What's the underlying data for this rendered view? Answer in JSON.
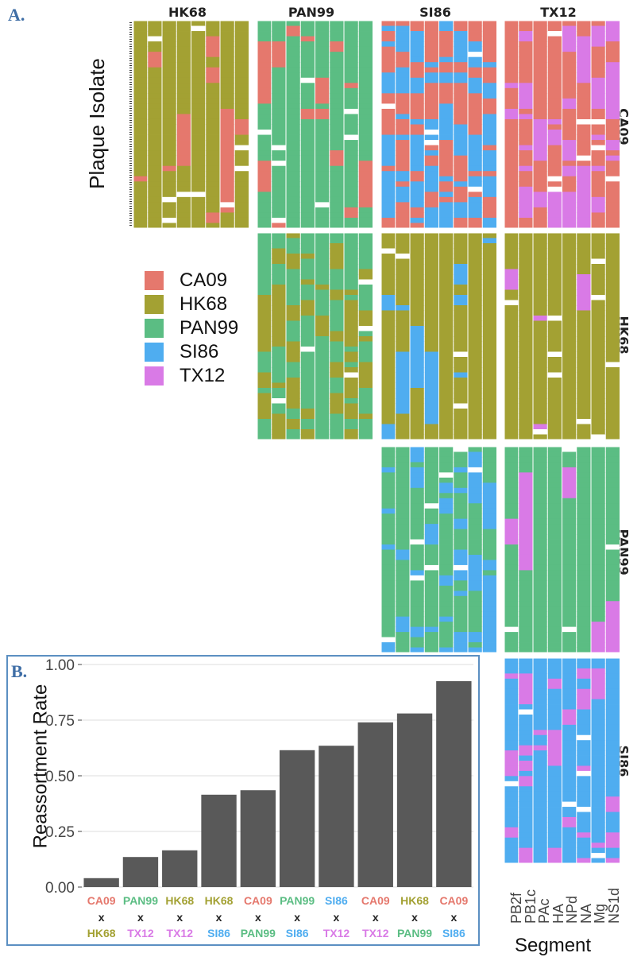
{
  "panel_a_label": "A.",
  "panel_b_label": "B.",
  "columns": [
    "HK68",
    "PAN99",
    "SI86",
    "TX12"
  ],
  "rows": [
    "CA09",
    "HK68",
    "PAN99",
    "SI86"
  ],
  "y_axis_title_a": "Plaque Isolate",
  "x_axis_title_a": "Segment",
  "segments": [
    "PB2f",
    "PB1c",
    "PAc",
    "HA",
    "NPd",
    "NA",
    "Mg",
    "NS1d"
  ],
  "legend": [
    {
      "label": "CA09",
      "color": "#e5786d"
    },
    {
      "label": "HK68",
      "color": "#a3a133"
    },
    {
      "label": "PAN99",
      "color": "#5bbd83"
    },
    {
      "label": "SI86",
      "color": "#4fadf0"
    },
    {
      "label": "TX12",
      "color": "#d97ae6"
    }
  ],
  "colors": {
    "CA09": "#e5786d",
    "HK68": "#a3a133",
    "PAN99": "#5bbd83",
    "SI86": "#4fadf0",
    "TX12": "#d97ae6",
    "bar": "#595959",
    "panel_border": "#5b8fc2"
  },
  "chart_data": {
    "type": "bar",
    "ylabel": "Reassortment Rate",
    "xlabel": "",
    "ylim": [
      0,
      1.0
    ],
    "yticks": [
      "0.00",
      "0.25",
      "0.50",
      "0.75",
      "1.00"
    ],
    "grid": true,
    "categories": [
      {
        "top": "CA09",
        "bottom": "HK68"
      },
      {
        "top": "PAN99",
        "bottom": "TX12"
      },
      {
        "top": "HK68",
        "bottom": "TX12"
      },
      {
        "top": "HK68",
        "bottom": "SI86"
      },
      {
        "top": "CA09",
        "bottom": "PAN99"
      },
      {
        "top": "PAN99",
        "bottom": "SI86"
      },
      {
        "top": "SI86",
        "bottom": "TX12"
      },
      {
        "top": "CA09",
        "bottom": "TX12"
      },
      {
        "top": "HK68",
        "bottom": "PAN99"
      },
      {
        "top": "CA09",
        "bottom": "SI86"
      }
    ],
    "separator": "x",
    "values": [
      0.04,
      0.135,
      0.165,
      0.415,
      0.435,
      0.615,
      0.635,
      0.74,
      0.78,
      0.925
    ]
  }
}
